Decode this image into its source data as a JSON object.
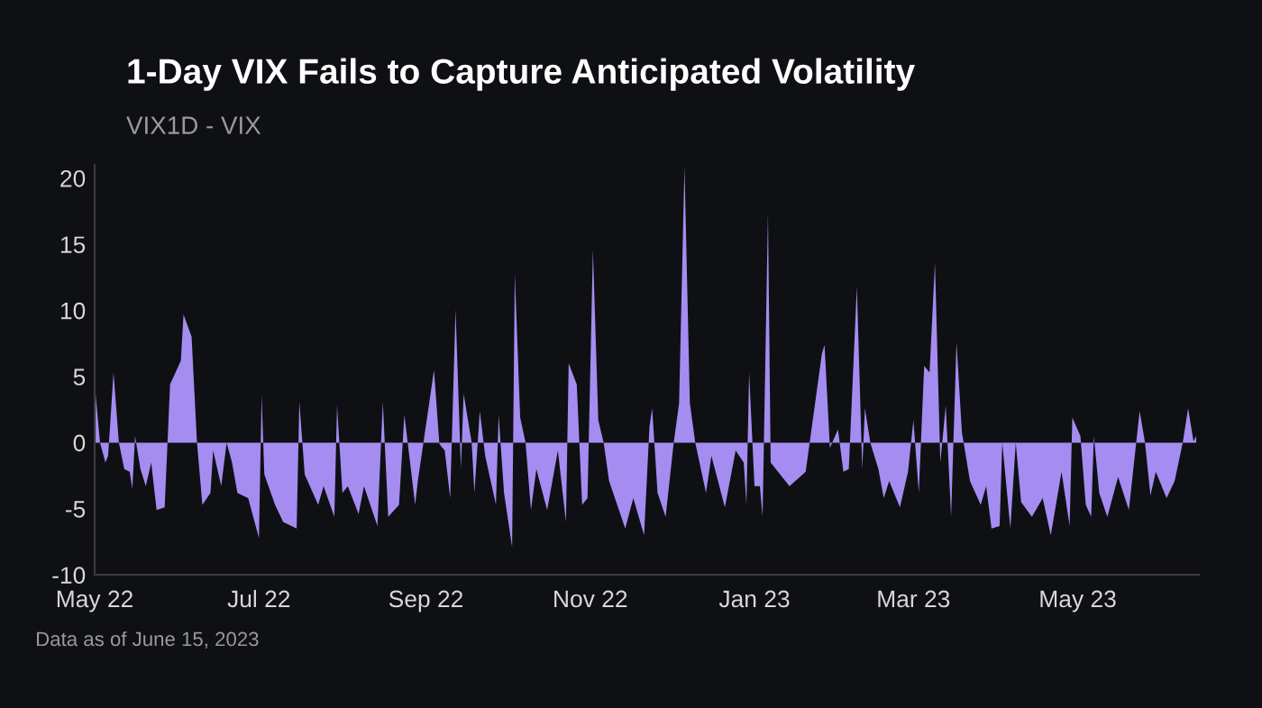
{
  "chart_data": {
    "type": "area",
    "title": "1-Day VIX Fails to Capture Anticipated Volatility",
    "subtitle": "VIX1D - VIX",
    "annotations": [
      "Data as of June 15, 2023"
    ],
    "color": "#a58cf0",
    "grid": false,
    "legend": false,
    "xlim": [
      "2022-05-01",
      "2023-06-15"
    ],
    "ylim": [
      -10,
      21
    ],
    "yticks": [
      -10,
      -5,
      0,
      5,
      10,
      15,
      20
    ],
    "xticks": [
      {
        "value": "2022-05-01",
        "label": "May 22"
      },
      {
        "value": "2022-07-01",
        "label": "Jul 22"
      },
      {
        "value": "2022-09-01",
        "label": "Sep 22"
      },
      {
        "value": "2022-11-01",
        "label": "Nov 22"
      },
      {
        "value": "2023-01-01",
        "label": "Jan 23"
      },
      {
        "value": "2023-03-01",
        "label": "Mar 23"
      },
      {
        "value": "2023-05-01",
        "label": "May 23"
      }
    ],
    "x": [
      "2022-05-01",
      "2022-05-03",
      "2022-05-05",
      "2022-05-06",
      "2022-05-08",
      "2022-05-10",
      "2022-05-12",
      "2022-05-14",
      "2022-05-15",
      "2022-05-16",
      "2022-05-18",
      "2022-05-20",
      "2022-05-22",
      "2022-05-24",
      "2022-05-27",
      "2022-05-29",
      "2022-06-02",
      "2022-06-03",
      "2022-06-06",
      "2022-06-08",
      "2022-06-10",
      "2022-06-13",
      "2022-06-14",
      "2022-06-17",
      "2022-06-19",
      "2022-06-21",
      "2022-06-23",
      "2022-06-27",
      "2022-07-01",
      "2022-07-02",
      "2022-07-03",
      "2022-07-07",
      "2022-07-10",
      "2022-07-15",
      "2022-07-16",
      "2022-07-18",
      "2022-07-23",
      "2022-07-25",
      "2022-07-29",
      "2022-07-30",
      "2022-08-01",
      "2022-08-03",
      "2022-08-07",
      "2022-08-09",
      "2022-08-14",
      "2022-08-16",
      "2022-08-18",
      "2022-08-22",
      "2022-08-24",
      "2022-08-28",
      "2022-08-29",
      "2022-09-04",
      "2022-09-06",
      "2022-09-08",
      "2022-09-10",
      "2022-09-12",
      "2022-09-14",
      "2022-09-15",
      "2022-09-18",
      "2022-09-19",
      "2022-09-21",
      "2022-09-23",
      "2022-09-27",
      "2022-09-28",
      "2022-09-30",
      "2022-10-03",
      "2022-10-04",
      "2022-10-06",
      "2022-10-08",
      "2022-10-10",
      "2022-10-12",
      "2022-10-16",
      "2022-10-20",
      "2022-10-23",
      "2022-10-24",
      "2022-10-27",
      "2022-10-29",
      "2022-10-31",
      "2022-11-02",
      "2022-11-04",
      "2022-11-06",
      "2022-11-08",
      "2022-11-14",
      "2022-11-17",
      "2022-11-21",
      "2022-11-23",
      "2022-11-24",
      "2022-11-26",
      "2022-11-29",
      "2022-12-02",
      "2022-12-04",
      "2022-12-06",
      "2022-12-08",
      "2022-12-10",
      "2022-12-14",
      "2022-12-16",
      "2022-12-21",
      "2022-12-25",
      "2022-12-28",
      "2022-12-29",
      "2022-12-30",
      "2023-01-01",
      "2023-01-03",
      "2023-01-04",
      "2023-01-06",
      "2023-01-07",
      "2023-01-14",
      "2023-01-20",
      "2023-01-26",
      "2023-01-27",
      "2023-01-29",
      "2023-02-01",
      "2023-02-03",
      "2023-02-05",
      "2023-02-08",
      "2023-02-10",
      "2023-02-11",
      "2023-02-13",
      "2023-02-16",
      "2023-02-18",
      "2023-02-20",
      "2023-02-24",
      "2023-02-27",
      "2023-03-01",
      "2023-03-03",
      "2023-03-05",
      "2023-03-07",
      "2023-03-09",
      "2023-03-11",
      "2023-03-13",
      "2023-03-15",
      "2023-03-17",
      "2023-03-19",
      "2023-03-22",
      "2023-03-26",
      "2023-03-28",
      "2023-03-30",
      "2023-04-02",
      "2023-04-03",
      "2023-04-06",
      "2023-04-08",
      "2023-04-10",
      "2023-04-14",
      "2023-04-18",
      "2023-04-21",
      "2023-04-25",
      "2023-04-28",
      "2023-04-29",
      "2023-05-02",
      "2023-05-04",
      "2023-05-06",
      "2023-05-07",
      "2023-05-09",
      "2023-05-12",
      "2023-05-16",
      "2023-05-20",
      "2023-05-24",
      "2023-05-26",
      "2023-05-28",
      "2023-05-30",
      "2023-06-03",
      "2023-06-06",
      "2023-06-09",
      "2023-06-11",
      "2023-06-13",
      "2023-06-14"
    ],
    "values": [
      4.4,
      0,
      -1.5,
      -1,
      5.3,
      0,
      -2,
      -2.2,
      -3.5,
      0.5,
      -2,
      -3.3,
      -1.5,
      -5.1,
      -4.9,
      4.4,
      6.2,
      9.7,
      8,
      0,
      -4.7,
      -3.8,
      -0.6,
      -3.3,
      0,
      -1.5,
      -3.8,
      -4.2,
      -7.2,
      3.6,
      -2.4,
      -4.7,
      -6,
      -6.5,
      3.1,
      -2.4,
      -4.7,
      -3.3,
      -5.6,
      2.8,
      -3.8,
      -3.3,
      -5.4,
      -3.3,
      -6.3,
      3.1,
      -5.6,
      -4.7,
      2.1,
      -4.7,
      -2.9,
      5.5,
      -0.1,
      -0.6,
      -4.2,
      10.1,
      -2,
      3.7,
      0,
      -3.8,
      2.4,
      -1,
      -4.7,
      2.1,
      -3.8,
      -7.9,
      12.8,
      1.9,
      0,
      -5.1,
      -2,
      -5.1,
      -0.6,
      -6,
      6,
      4.4,
      -4.7,
      -4.2,
      14.6,
      1.7,
      0,
      -2.9,
      -6.5,
      -4.2,
      -7,
      1.2,
      2.6,
      -3.8,
      -5.6,
      0,
      3,
      20.9,
      3,
      0,
      -3.8,
      -1,
      -4.9,
      -0.6,
      -1.5,
      -4.7,
      5.3,
      -3.3,
      -3.3,
      -5.6,
      17.4,
      -1.5,
      -3.3,
      -2.2,
      6.7,
      7.4,
      -0.4,
      1,
      -2.2,
      -2,
      11.8,
      -2,
      2.6,
      0,
      -2,
      -4.2,
      -2.9,
      -4.9,
      -2.2,
      1.7,
      -3.8,
      5.8,
      5.3,
      13.6,
      -1.5,
      2.8,
      -5.6,
      7.6,
      0.8,
      -2.9,
      -4.7,
      -3.3,
      -6.5,
      -6.3,
      0,
      -6.5,
      0,
      -4.5,
      -5.6,
      -4.2,
      -7,
      -2.2,
      -6.3,
      1.9,
      0.5,
      -4.7,
      -5.6,
      0.5,
      -3.8,
      -5.6,
      -2.6,
      -5.1,
      2.4,
      0,
      -4,
      -2.2,
      -4.2,
      -2.9,
      0,
      2.6,
      0.1,
      0.5
    ]
  }
}
